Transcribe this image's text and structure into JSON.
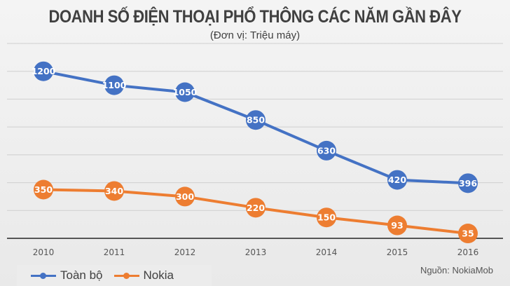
{
  "chart_data": {
    "type": "line",
    "title": "DOANH SỐ ĐIỆN THOẠI PHỔ THÔNG CÁC NĂM GẦN ĐÂY",
    "subtitle": "(Đơn vị: Triệu máy)",
    "categories": [
      "2010",
      "2011",
      "2012",
      "2013",
      "2014",
      "2015",
      "2016"
    ],
    "series": [
      {
        "name": "Toàn bộ",
        "color": "#4472C4",
        "values": [
          1200,
          1100,
          1050,
          850,
          630,
          420,
          396
        ]
      },
      {
        "name": "Nokia",
        "color": "#ED7D31",
        "values": [
          350,
          340,
          300,
          220,
          150,
          93,
          35
        ]
      }
    ],
    "ylim": [
      0,
      1400
    ],
    "ygrid_step": 200,
    "grid": true,
    "legend": "bottom-left",
    "data_labels": true,
    "source": "Nguồn: NokiaMob"
  }
}
